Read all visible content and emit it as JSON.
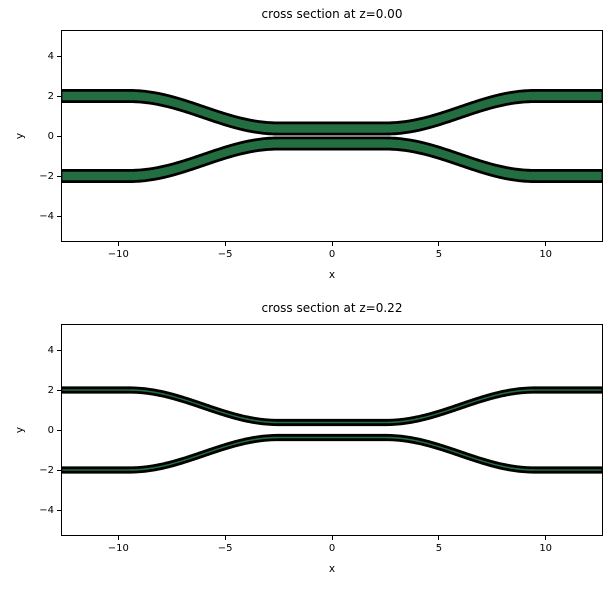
{
  "figure": {
    "background": "#ffffff"
  },
  "chart_data": [
    {
      "type": "area",
      "title": "cross section at z=0.00",
      "xlabel": "x",
      "ylabel": "y",
      "xlim": [
        -12.68,
        12.68
      ],
      "ylim": [
        -5.3,
        5.3
      ],
      "xticks": {
        "values": [
          -10,
          -5,
          0,
          5,
          10
        ],
        "labels": [
          "−10",
          "−5",
          "0",
          "5",
          "10"
        ]
      },
      "yticks": {
        "values": [
          4,
          2,
          0,
          -2,
          -4
        ],
        "labels": [
          "4",
          "2",
          "0",
          "−2",
          "−4"
        ]
      },
      "grid": false,
      "legend": null,
      "z_value": 0.0,
      "geometry": {
        "shape": "symmetric-coupler-two-waveguides",
        "arm_y": 2.0,
        "center_y": 0.375,
        "bend_x_inner": 2.5,
        "bend_x_outer": 9.5,
        "bend_profile": "cosine",
        "polygon_width": 0.56,
        "fill_color": "#236e41",
        "edge_color": "#000000",
        "edge_width": 2.8,
        "frame_color": "#000000"
      }
    },
    {
      "type": "area",
      "title": "cross section at z=0.22",
      "xlabel": "x",
      "ylabel": "y",
      "xlim": [
        -12.68,
        12.68
      ],
      "ylim": [
        -5.3,
        5.3
      ],
      "xticks": {
        "values": [
          -10,
          -5,
          0,
          5,
          10
        ],
        "labels": [
          "−10",
          "−5",
          "0",
          "5",
          "10"
        ]
      },
      "yticks": {
        "values": [
          4,
          2,
          0,
          -2,
          -4
        ],
        "labels": [
          "4",
          "2",
          "0",
          "−2",
          "−4"
        ]
      },
      "grid": false,
      "legend": null,
      "z_value": 0.22,
      "geometry": {
        "shape": "symmetric-coupler-two-waveguides",
        "arm_y": 2.0,
        "center_y": 0.375,
        "bend_x_inner": 2.5,
        "bend_x_outer": 9.5,
        "bend_profile": "cosine",
        "polygon_width": 0.22,
        "fill_color": "#236e41",
        "edge_color": "#000000",
        "edge_width": 2.8,
        "frame_color": "#000000"
      }
    }
  ]
}
